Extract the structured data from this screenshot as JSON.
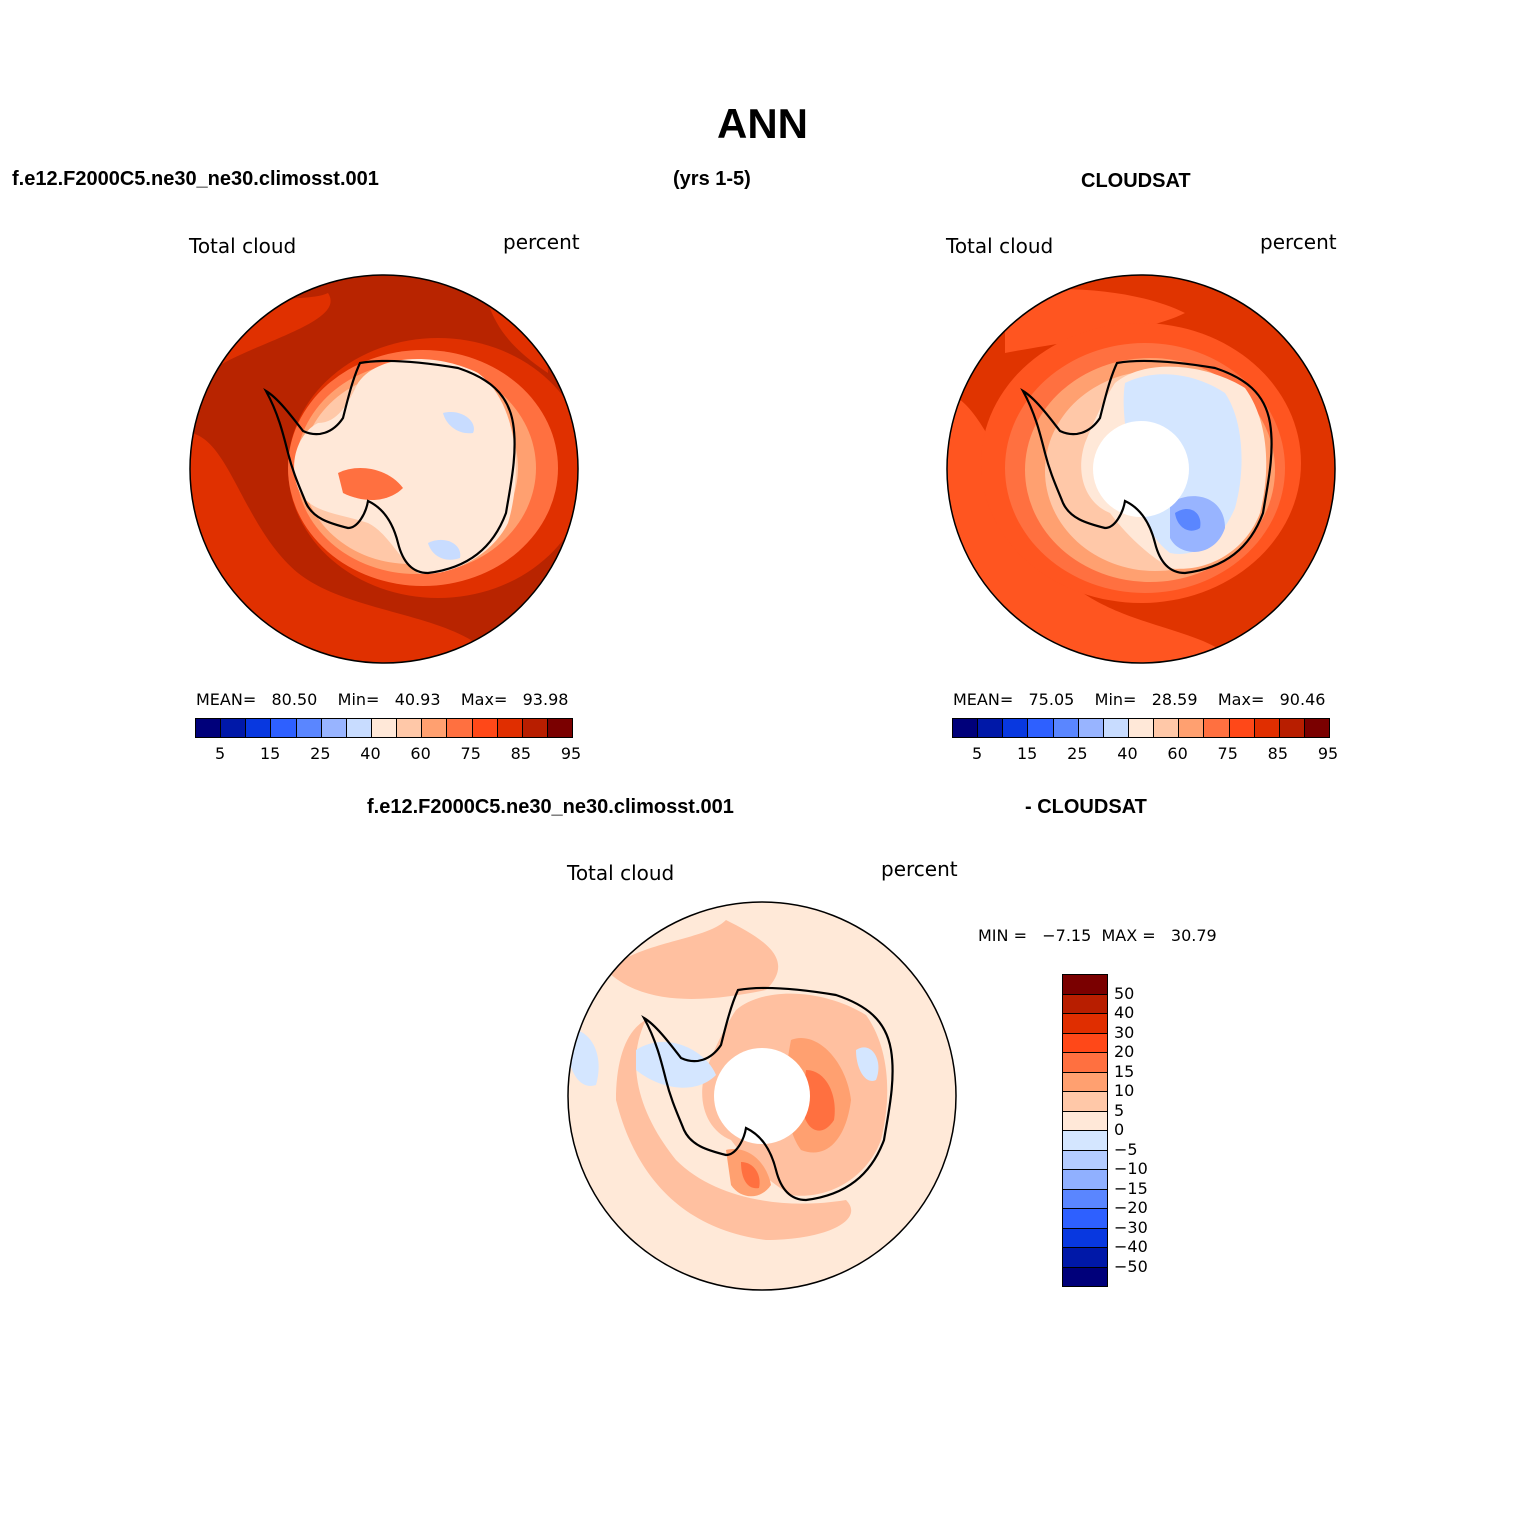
{
  "title": "ANN",
  "header": {
    "case_name": "f.e12.F2000C5.ne30_ne30.climosst.001",
    "years": "(yrs 1-5)",
    "obs_name": "CLOUDSAT",
    "diff_case_name": "f.e12.F2000C5.ne30_ne30.climosst.001",
    "diff_obs_name": "- CLOUDSAT"
  },
  "panels": {
    "model": {
      "variable": "Total cloud",
      "units": "percent",
      "mean_label": "MEAN=",
      "mean": "80.50",
      "min_label": "Min=",
      "min": "40.93",
      "max_label": "Max=",
      "max": "93.98"
    },
    "obs": {
      "variable": "Total cloud",
      "units": "percent",
      "mean_label": "MEAN=",
      "mean": "75.05",
      "min_label": "Min=",
      "min": "28.59",
      "max_label": "Max=",
      "max": "90.46"
    },
    "diff": {
      "variable": "Total cloud",
      "units": "percent",
      "min_label": "MIN =",
      "min": "−7.15",
      "max_label": "MAX =",
      "max": "30.79"
    }
  },
  "colorbar_abs": {
    "colors": [
      "#00007a",
      "#0018a8",
      "#0838e0",
      "#2e60ff",
      "#5a86ff",
      "#98b4ff",
      "#c8dcff",
      "#ffe8d8",
      "#ffc8a8",
      "#ffa070",
      "#ff7040",
      "#ff4818",
      "#e02e00",
      "#b81e00",
      "#7a0000"
    ],
    "tick_labels": [
      "5",
      "15",
      "25",
      "40",
      "60",
      "75",
      "85",
      "95"
    ]
  },
  "colorbar_diff": {
    "colors": [
      "#7a0000",
      "#b81e00",
      "#e02e00",
      "#ff4818",
      "#ff7040",
      "#ffa070",
      "#ffc8a8",
      "#ffe8d8",
      "#d4e6ff",
      "#b4ccff",
      "#90b0ff",
      "#5a86ff",
      "#2e60ff",
      "#0838e0",
      "#0018a8",
      "#00007a"
    ],
    "tick_labels": [
      "50",
      "40",
      "30",
      "20",
      "15",
      "10",
      "5",
      "0",
      "−5",
      "−10",
      "−15",
      "−20",
      "−30",
      "−40",
      "−50"
    ]
  },
  "colors": {
    "model_outer": "#b82400",
    "model_mid": "#e03000",
    "obs_outer": "#e03400",
    "obs_mid": "#ff5520",
    "diff_bg": "#ffe9d8",
    "diff_mid": "#ffc0a0"
  }
}
